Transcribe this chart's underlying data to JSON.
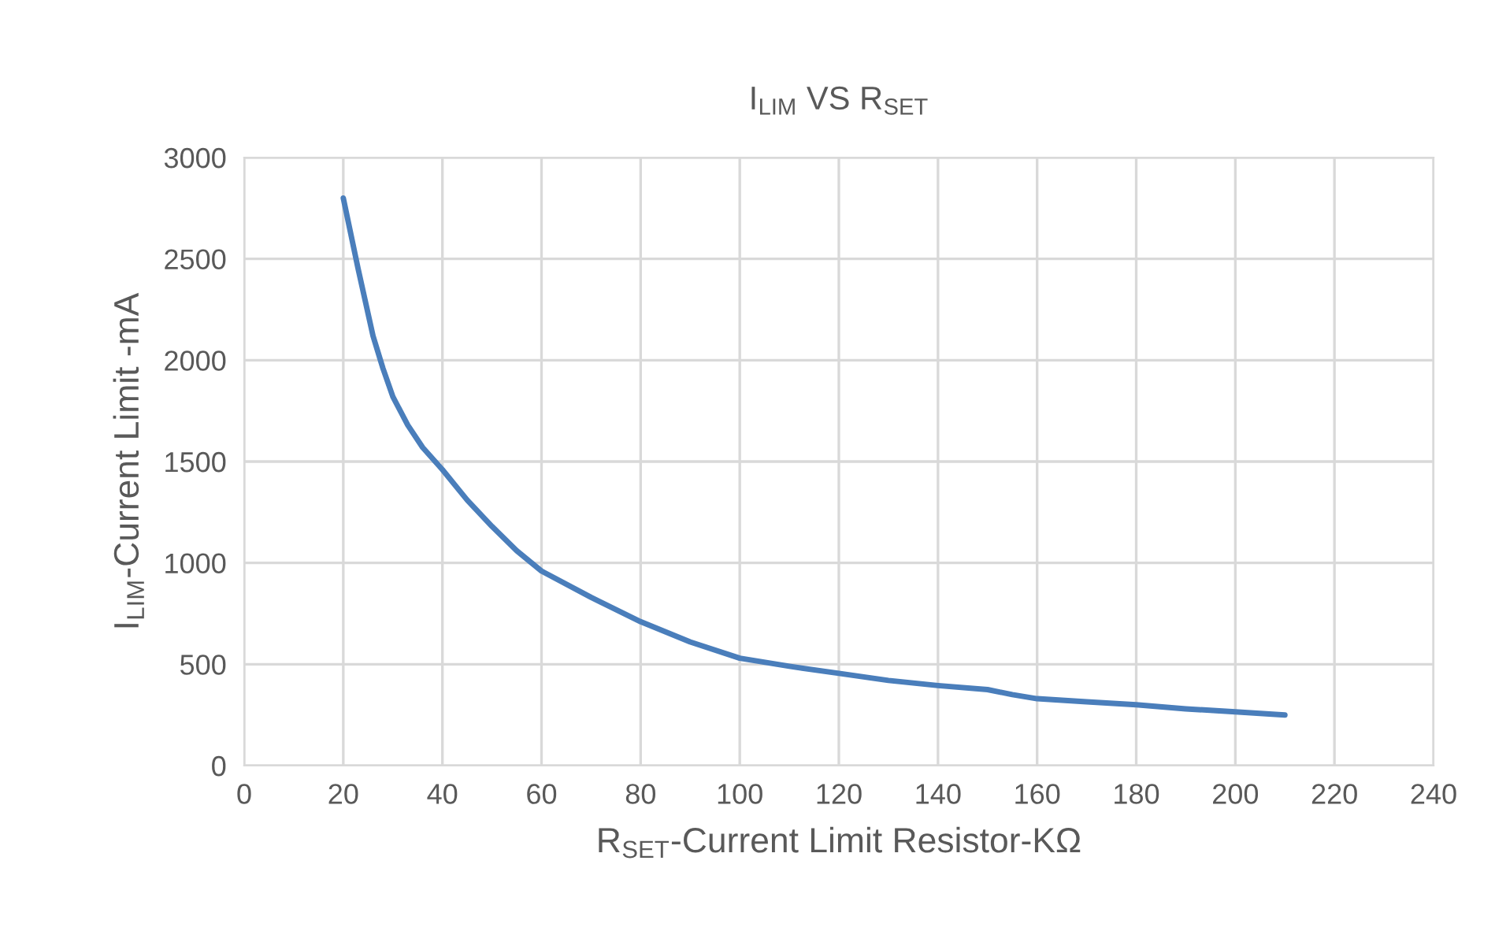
{
  "chart_data": {
    "type": "line",
    "title": "I$_{LIM}$ VS R$_{SET}$",
    "xlabel": "R$_{SET}$-Current Limit Resistor-KΩ",
    "ylabel": "I$_{LIM}$-Current Limit -mA",
    "series": [
      {
        "color": "#4a7ebb",
        "x": [
          20,
          23,
          26,
          28,
          30,
          33,
          36,
          40,
          45,
          50,
          55,
          60,
          70,
          80,
          90,
          100,
          110,
          120,
          130,
          140,
          150,
          155,
          160,
          170,
          180,
          190,
          200,
          210
        ],
        "values": [
          2800,
          2450,
          2120,
          1960,
          1820,
          1680,
          1570,
          1460,
          1310,
          1180,
          1060,
          960,
          830,
          710,
          610,
          530,
          490,
          455,
          420,
          395,
          375,
          350,
          330,
          315,
          300,
          280,
          265,
          250
        ]
      }
    ],
    "xlim": [
      0,
      240
    ],
    "xticks": [
      0,
      20,
      40,
      60,
      80,
      100,
      120,
      140,
      160,
      180,
      200,
      220,
      240
    ],
    "ylim": [
      0,
      3000
    ],
    "yticks": [
      0,
      500,
      1000,
      1500,
      2000,
      2500,
      3000
    ],
    "grid": true,
    "legend": false,
    "marker": "none",
    "line_style": "solid"
  }
}
